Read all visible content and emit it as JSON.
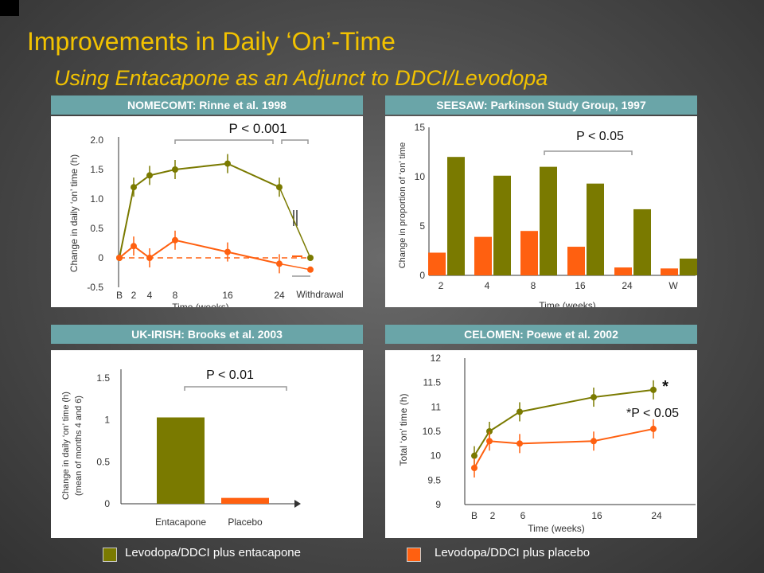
{
  "slide": {
    "title": "Improvements in Daily ‘On’-Time",
    "subtitle": "Using Entacapone as an Adjunct to DDCI/Levodopa"
  },
  "colors": {
    "entacapone": "#7a7a00",
    "placebo": "#ff6010",
    "header": "#6aa5a8",
    "title": "#f2c200"
  },
  "legend": {
    "entacapone": "Levodopa/DDCI plus entacapone",
    "placebo": "Levodopa/DDCI plus placebo"
  },
  "chart_data": [
    {
      "type": "line",
      "header": "NOMECOMT: Rinne et al. 1998",
      "annotation": "P < 0.001",
      "ylabel": "Change in daily ‘on’ time (h)",
      "xlabel": "Time (weeks)",
      "withdrawal_label": "Withdrawal",
      "ylim": [
        -0.5,
        2.0
      ],
      "yticks": [
        "2.0",
        "1.5",
        "1.0",
        "0.5",
        "0",
        "-0.5"
      ],
      "xticks": [
        "B",
        "2",
        "4",
        "8",
        "16",
        "24"
      ],
      "x": [
        0,
        2,
        4,
        8,
        16,
        24
      ],
      "series": [
        {
          "key": "entacapone",
          "values": [
            0.0,
            1.2,
            1.4,
            1.5,
            1.6,
            1.2
          ],
          "withdrawal": 0.0
        },
        {
          "key": "placebo",
          "values": [
            0.0,
            0.2,
            0.0,
            0.3,
            0.1,
            -0.1
          ],
          "withdrawal": -0.2
        }
      ]
    },
    {
      "type": "bar",
      "header": "SEESAW: Parkinson Study Group, 1997",
      "annotation": "P < 0.05",
      "ylabel": "Change in proportion of ‘on’ time",
      "xlabel": "Time (weeks)",
      "ylim": [
        0,
        15
      ],
      "yticks": [
        "15",
        "10",
        "5",
        "0"
      ],
      "categories": [
        "2",
        "4",
        "8",
        "16",
        "24",
        "W"
      ],
      "series": [
        {
          "key": "entacapone",
          "values": [
            12.0,
            10.1,
            11.0,
            9.3,
            6.7,
            1.7
          ]
        },
        {
          "key": "placebo",
          "values": [
            2.3,
            3.9,
            4.5,
            2.9,
            0.8,
            0.7
          ]
        }
      ]
    },
    {
      "type": "bar",
      "header": "UK-IRISH: Brooks et al. 2003",
      "annotation": "P < 0.01",
      "ylabel": "Change in daily ‘on’ time (h)",
      "ylabel2": "(mean of months 4 and 6)",
      "ylim": [
        0,
        1.5
      ],
      "yticks": [
        "1.5",
        "1",
        "0.5",
        "0"
      ],
      "categories": [
        "Entacapone",
        "Placebo"
      ],
      "values": [
        1.03,
        0.07
      ]
    },
    {
      "type": "line",
      "header": "CELOMEN: Poewe et al. 2002",
      "annotation": "*P < 0.05",
      "star": "*",
      "ylabel": "Total ‘on’ time (h)",
      "xlabel": "Time (weeks)",
      "ylim": [
        9,
        12
      ],
      "yticks": [
        "12",
        "11.5",
        "11",
        "10.5",
        "10",
        "9.5",
        "9"
      ],
      "xticks": [
        "B",
        "2",
        "6",
        "16",
        "24"
      ],
      "x": [
        0,
        2,
        6,
        16,
        24
      ],
      "series": [
        {
          "key": "entacapone",
          "values": [
            10.0,
            10.5,
            10.9,
            11.2,
            11.35
          ]
        },
        {
          "key": "placebo",
          "values": [
            9.75,
            10.3,
            10.25,
            10.3,
            10.55
          ]
        }
      ]
    }
  ]
}
